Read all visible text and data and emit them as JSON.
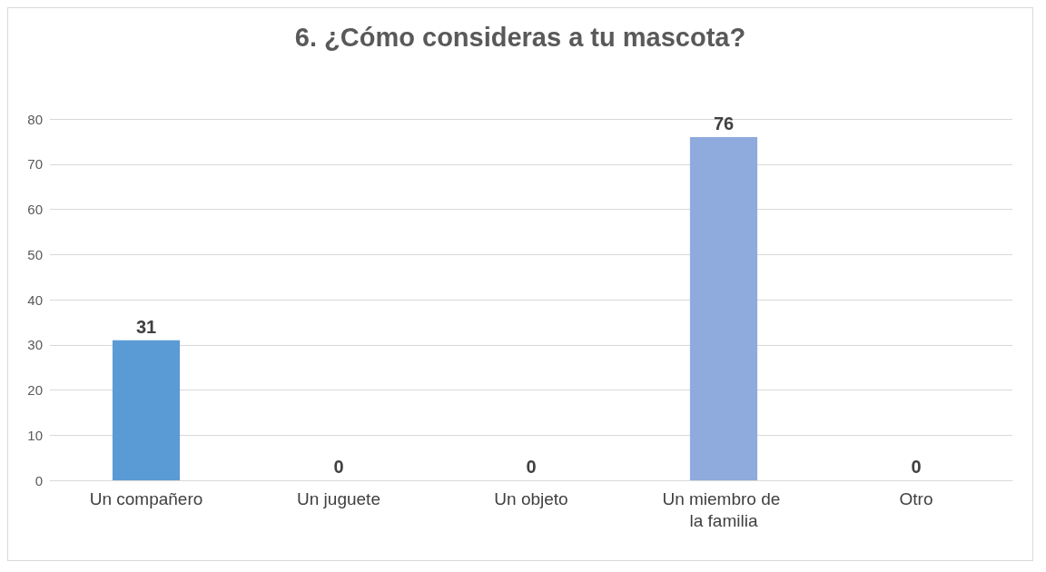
{
  "chart_data": {
    "type": "bar",
    "title": "6. ¿Cómo consideras a tu mascota?",
    "categories": [
      "Un compañero",
      "Un juguete",
      "Un objeto",
      "Un miembro de la familia",
      "Otro"
    ],
    "values": [
      31,
      0,
      0,
      76,
      0
    ],
    "colors": [
      "#5b9bd5",
      "#5b9bd5",
      "#5b9bd5",
      "#8faadc",
      "#5b9bd5"
    ],
    "ylim": [
      0,
      80
    ],
    "yticks": [
      0,
      10,
      20,
      30,
      40,
      50,
      60,
      70,
      80
    ],
    "grid": "y",
    "data_labels": true
  }
}
